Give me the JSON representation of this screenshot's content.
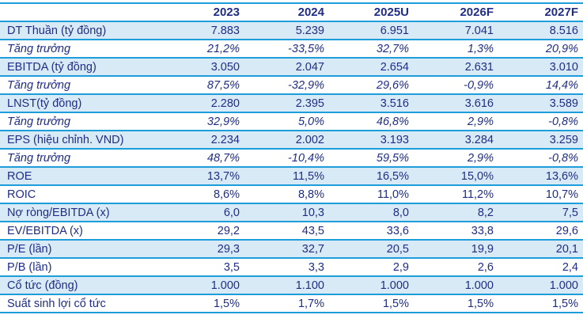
{
  "chart_data": {
    "type": "table",
    "columns": [
      "",
      "2023",
      "2024",
      "2025U",
      "2026F",
      "2027F"
    ],
    "rows": [
      {
        "label": "DT Thuần (tỷ đồng)",
        "values": [
          "7.883",
          "5.239",
          "6.951",
          "7.041",
          "8.516"
        ],
        "striped": true,
        "italic": false
      },
      {
        "label": "Tăng trưởng",
        "values": [
          "21,2%",
          "-33,5%",
          "32,7%",
          "1,3%",
          "20,9%"
        ],
        "striped": false,
        "italic": true
      },
      {
        "label": "EBITDA (tỷ đồng)",
        "values": [
          "3.050",
          "2.047",
          "2.654",
          "2.631",
          "3.010"
        ],
        "striped": true,
        "italic": false
      },
      {
        "label": "Tăng trưởng",
        "values": [
          "87,5%",
          "-32,9%",
          "29,6%",
          "-0,9%",
          "14,4%"
        ],
        "striped": false,
        "italic": true
      },
      {
        "label": "LNST(tỷ đồng)",
        "values": [
          "2.280",
          "2.395",
          "3.516",
          "3.616",
          "3.589"
        ],
        "striped": true,
        "italic": false
      },
      {
        "label": "Tăng trưởng",
        "values": [
          "32,9%",
          "5,0%",
          "46,8%",
          "2,9%",
          "-0,8%"
        ],
        "striped": false,
        "italic": true
      },
      {
        "label": "EPS (hiệu chỉnh. VND)",
        "values": [
          "2.234",
          "2.002",
          "3.193",
          "3.284",
          "3.259"
        ],
        "striped": true,
        "italic": false
      },
      {
        "label": "Tăng trưởng",
        "values": [
          "48,7%",
          "-10,4%",
          "59,5%",
          "2,9%",
          "-0,8%"
        ],
        "striped": false,
        "italic": true
      },
      {
        "label": "ROE",
        "values": [
          "13,7%",
          "11,5%",
          "16,5%",
          "15,0%",
          "13,6%"
        ],
        "striped": true,
        "italic": false
      },
      {
        "label": "ROIC",
        "values": [
          "8,6%",
          "8,8%",
          "11,0%",
          "11,2%",
          "10,7%"
        ],
        "striped": false,
        "italic": false
      },
      {
        "label": "Nợ ròng/EBITDA (x)",
        "values": [
          "6,0",
          "10,3",
          "8,0",
          "8,2",
          "7,5"
        ],
        "striped": true,
        "italic": false
      },
      {
        "label": "EV/EBITDA (x)",
        "values": [
          "29,2",
          "43,5",
          "33,6",
          "33,8",
          "29,6"
        ],
        "striped": false,
        "italic": false
      },
      {
        "label": "P/E (lần)",
        "values": [
          "29,3",
          "32,7",
          "20,5",
          "19,9",
          "20,1"
        ],
        "striped": true,
        "italic": false
      },
      {
        "label": "P/B (lần)",
        "values": [
          "3,5",
          "3,3",
          "2,9",
          "2,6",
          "2,4"
        ],
        "striped": false,
        "italic": false
      },
      {
        "label": "Cổ tức (đồng)",
        "values": [
          "1.000",
          "1.100",
          "1.000",
          "1.000",
          "1.000"
        ],
        "striped": true,
        "italic": false
      },
      {
        "label": "Suất sinh lợi cổ tức",
        "values": [
          "1,5%",
          "1,7%",
          "1,5%",
          "1,5%",
          "1,5%"
        ],
        "striped": false,
        "italic": false
      }
    ]
  },
  "colors": {
    "text_navy": "#1f2d87",
    "border_azure": "#1d9dd9",
    "stripe_blue": "#d9eaf7",
    "background": "#ffffff"
  }
}
